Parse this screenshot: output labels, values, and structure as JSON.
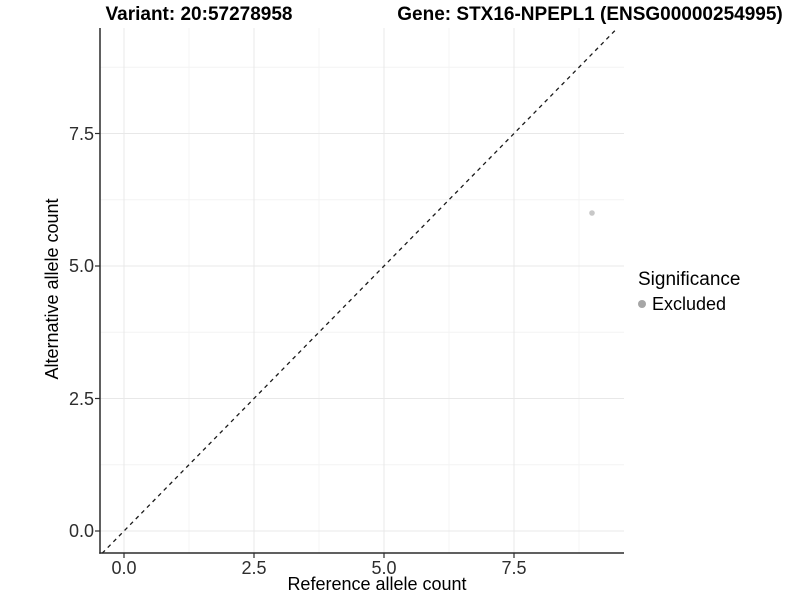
{
  "chart_data": {
    "type": "scatter",
    "titles": {
      "left": "Variant: 20:57278958",
      "right": "Gene: STX16-NPEPL1 (ENSG00000254995)"
    },
    "xlabel": "Reference allele count",
    "ylabel": "Alternative allele count",
    "points": [
      {
        "x": 9,
        "y": 6,
        "series": "Excluded"
      }
    ],
    "point_color": "#c8c8c8",
    "point_radius": 2.8,
    "x_ticks": [
      0,
      2.5,
      5,
      7.5
    ],
    "x_tick_labels": [
      "0.0",
      "2.5",
      "5.0",
      "7.5"
    ],
    "y_ticks": [
      0,
      2.5,
      5,
      7.5
    ],
    "y_tick_labels": [
      "0.0",
      "2.5",
      "5.0",
      "7.5"
    ],
    "x_minor_ticks": [
      1.25,
      3.75,
      6.25,
      8.75
    ],
    "y_minor_ticks": [
      1.25,
      3.75,
      6.25,
      8.75
    ],
    "xlim": [
      -0.46,
      9.62
    ],
    "ylim": [
      -0.42,
      9.49
    ],
    "grid": "major+minor",
    "reference_line": {
      "type": "identity y=x",
      "style": "dashed"
    },
    "legend": {
      "position": "right",
      "title": "Significance",
      "entries": [
        {
          "label": "Excluded",
          "color": "#a6a6a6"
        }
      ]
    }
  },
  "colors": {
    "background": "#ffffff",
    "grid_major": "#e8e8e8",
    "grid_minor": "#f4f4f4",
    "axis_line": "#2b2b2b",
    "tick_text": "#2e2e2e",
    "title_text": "#000000",
    "identity_line": "#1a1a1a"
  }
}
